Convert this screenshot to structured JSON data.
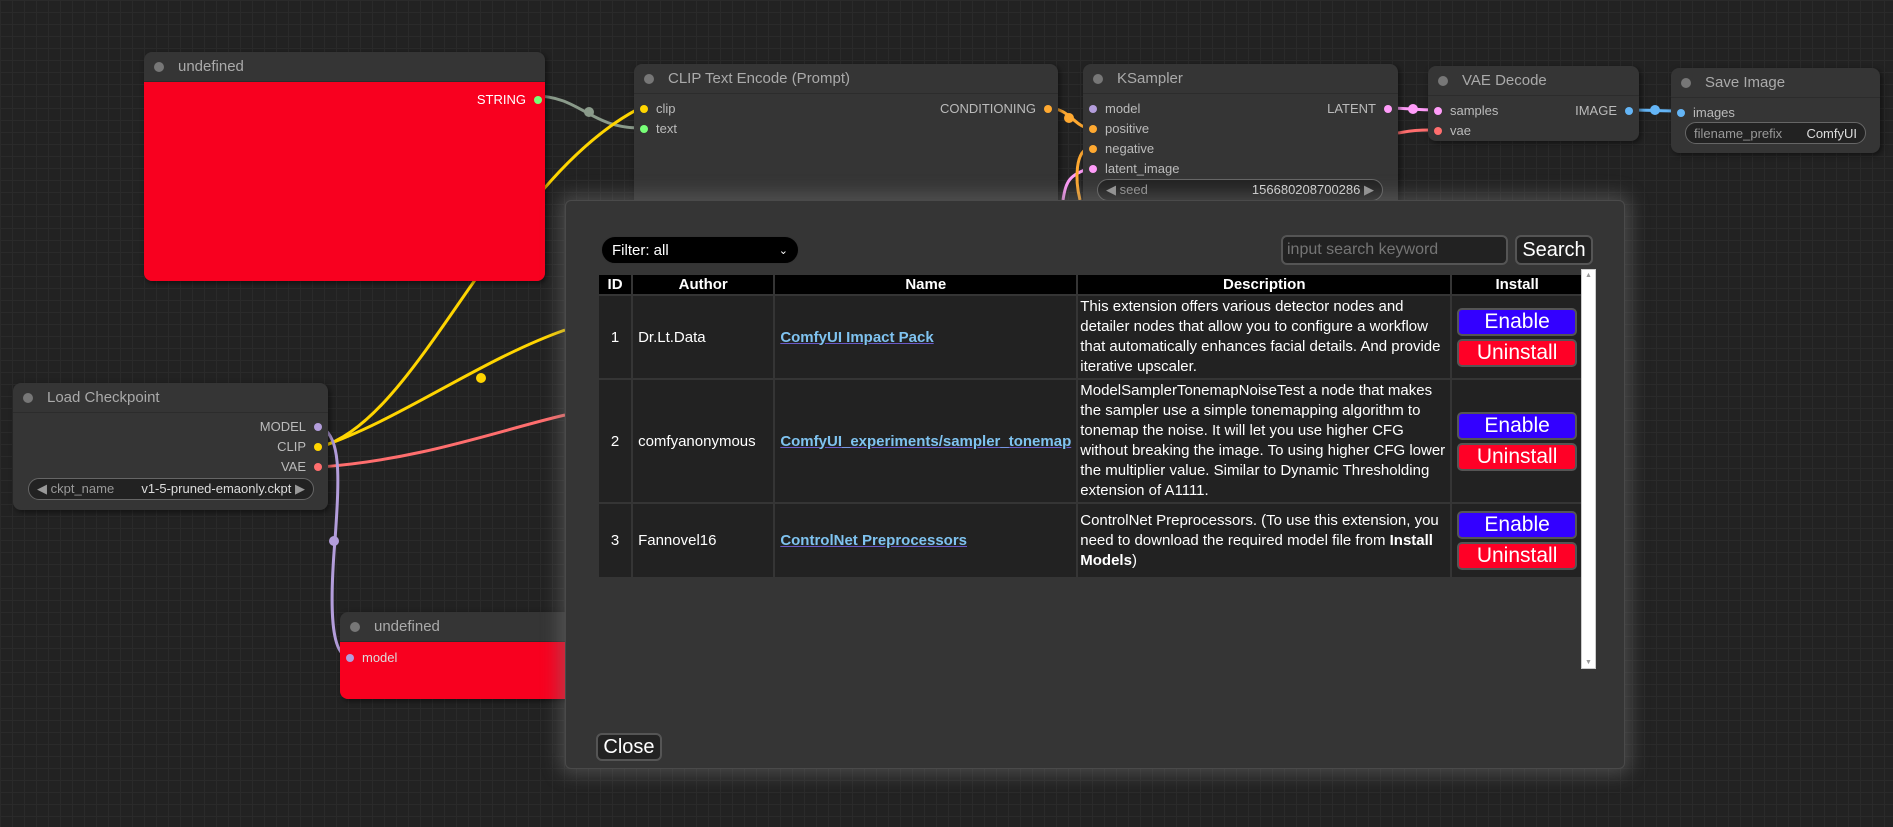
{
  "colors": {
    "node_red": "#f8001f",
    "enable": "#3300ff",
    "uninstall": "#ff0026",
    "clip": "#ffd500",
    "model": "#b39ddb",
    "vae": "#ff6e6e",
    "latent": "#ff9cf9",
    "conditioning": "#ffa931",
    "image": "#64b5f6",
    "string": "#77ff77"
  },
  "nodes": {
    "undefined_top": {
      "title": "undefined",
      "out": "STRING"
    },
    "clip_text": {
      "title": "CLIP Text Encode (Prompt)",
      "in": [
        "clip",
        "text"
      ],
      "out": "CONDITIONING"
    },
    "ksampler": {
      "title": "KSampler",
      "in": [
        "model",
        "positive",
        "negative",
        "latent_image"
      ],
      "out": "LATENT",
      "seed_label": "seed",
      "seed_value": "156680208700286"
    },
    "vae_decode": {
      "title": "VAE Decode",
      "in": [
        "samples",
        "vae"
      ],
      "out": "IMAGE"
    },
    "save_image": {
      "title": "Save Image",
      "in": [
        "images"
      ],
      "widget_label": "filename_prefix",
      "widget_value": "ComfyUI"
    },
    "load_checkpoint": {
      "title": "Load Checkpoint",
      "out": [
        "MODEL",
        "CLIP",
        "VAE"
      ],
      "widget_label": "ckpt_name",
      "widget_value": "v1-5-pruned-emaonly.ckpt"
    },
    "undefined_bottom": {
      "title": "undefined",
      "in": "model"
    }
  },
  "dialog": {
    "filter": "Filter: all",
    "search_placeholder": "input search keyword",
    "search_label": "Search",
    "close_label": "Close",
    "columns": [
      "ID",
      "Author",
      "Name",
      "Description",
      "Install"
    ],
    "rows": [
      {
        "id": "1",
        "author": "Dr.Lt.Data",
        "name": "ComfyUI Impact Pack",
        "desc": "This extension offers various detector nodes and detailer nodes that allow you to configure a workflow that automatically enhances facial details. And provide iterative upscaler.",
        "enable": "Enable",
        "uninstall": "Uninstall"
      },
      {
        "id": "2",
        "author": "comfyanonymous",
        "name": "ComfyUI_experiments/sampler_tonemap",
        "desc": "ModelSamplerTonemapNoiseTest a node that makes the sampler use a simple tonemapping algorithm to tonemap the noise. It will let you use higher CFG without breaking the image. To using higher CFG lower the multiplier value. Similar to Dynamic Thresholding extension of A1111.",
        "enable": "Enable",
        "uninstall": "Uninstall"
      },
      {
        "id": "3",
        "author": "Fannovel16",
        "name": "ControlNet Preprocessors",
        "desc_pre": "ControlNet Preprocessors. (To use this extension, you need to download the required model file from ",
        "desc_bold": "Install Models",
        "desc_post": ")",
        "enable": "Enable",
        "uninstall": "Uninstall"
      }
    ]
  }
}
